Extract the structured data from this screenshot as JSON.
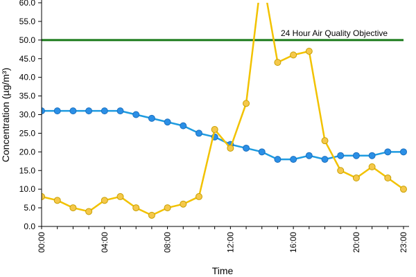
{
  "chart_data": {
    "type": "line",
    "xlabel": "Time",
    "ylabel": "Concentration (µg/m³)",
    "ylim": [
      0,
      60
    ],
    "y_ticks": [
      "0.0",
      "5.0",
      "10.0",
      "15.0",
      "20.0",
      "25.0",
      "30.0",
      "35.0",
      "40.0",
      "45.0",
      "50.0",
      "55.0",
      "60.0"
    ],
    "x_tick_labels": [
      "00:00",
      "04:00",
      "08:00",
      "12:00",
      "16:00",
      "20:00",
      "23:00"
    ],
    "x_tick_hours": [
      0,
      4,
      8,
      12,
      16,
      20,
      23
    ],
    "x": [
      0,
      1,
      2,
      3,
      4,
      5,
      6,
      7,
      8,
      9,
      10,
      11,
      12,
      13,
      14,
      15,
      16,
      17,
      18,
      19,
      20,
      21,
      22,
      23
    ],
    "grid": false,
    "series": [
      {
        "color": "#1e9be0",
        "values": [
          31,
          31,
          31,
          31,
          31,
          31,
          30,
          29,
          28,
          27,
          25,
          24,
          22,
          21,
          20,
          18,
          18,
          19,
          18,
          19,
          19,
          19,
          20,
          20
        ]
      },
      {
        "color": "#f2c200",
        "values": [
          8,
          7,
          5,
          4,
          7,
          8,
          5,
          3,
          5,
          6,
          8,
          26,
          21,
          33,
          68,
          44,
          46,
          47,
          23,
          15,
          13,
          16,
          13,
          10
        ]
      }
    ],
    "reference_line": {
      "label": "24 Hour Air Quality Objective",
      "value": 50,
      "color": "#1a7a1a"
    }
  }
}
